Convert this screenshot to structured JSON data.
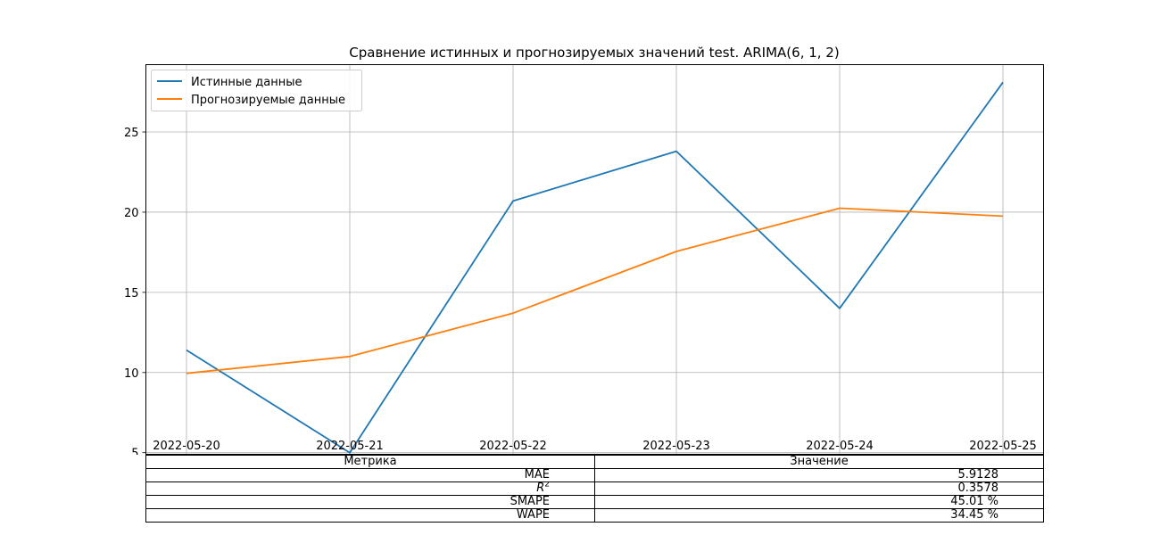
{
  "chart_data": {
    "type": "line",
    "title": "Сравнение истинных и прогнозируемых значений test. ARIMA(6, 1, 2)",
    "x": [
      "2022-05-20",
      "2022-05-21",
      "2022-05-22",
      "2022-05-23",
      "2022-05-24",
      "2022-05-25"
    ],
    "series": [
      {
        "name": "Истинные данные",
        "color": "#1f77b4",
        "values": [
          11.4,
          5.0,
          20.7,
          23.8,
          14.0,
          28.1
        ]
      },
      {
        "name": "Прогнозируемые данные",
        "color": "#ff7f0e",
        "values": [
          9.95,
          11.0,
          13.7,
          17.55,
          20.25,
          19.75
        ]
      }
    ],
    "ylim": [
      4.9,
      29.2
    ],
    "yticks": [
      5,
      10,
      15,
      20,
      25
    ],
    "grid": true,
    "legend": "top-left"
  },
  "table": {
    "headers": [
      "Метрика",
      "Значение"
    ],
    "rows": [
      {
        "metric": "MAE",
        "value": "5.9128"
      },
      {
        "metric": "R",
        "metric_sup": "2",
        "value": "0.3578"
      },
      {
        "metric": "SMAPE",
        "value": "45.01 %"
      },
      {
        "metric": "WAPE",
        "value": "34.45 %"
      }
    ]
  }
}
